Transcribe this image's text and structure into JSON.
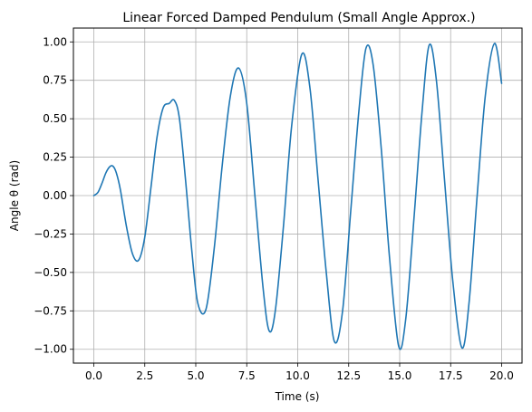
{
  "chart_data": {
    "type": "line",
    "title": "Linear Forced Damped Pendulum (Small Angle Approx.)",
    "xlabel": "Time (s)",
    "ylabel": "Angle θ (rad)",
    "xlim": [
      -1.0,
      21.0
    ],
    "ylim": [
      -1.09,
      1.09
    ],
    "grid": true,
    "x_ticks": [
      0.0,
      2.5,
      5.0,
      7.5,
      10.0,
      12.5,
      15.0,
      17.5,
      20.0
    ],
    "x_tick_labels": [
      "0.0",
      "2.5",
      "5.0",
      "7.5",
      "10.0",
      "12.5",
      "15.0",
      "17.5",
      "20.0"
    ],
    "y_ticks": [
      1.0,
      0.75,
      0.5,
      0.25,
      0.0,
      -0.25,
      -0.5,
      -0.75,
      -1.0
    ],
    "y_tick_labels": [
      "1.00",
      "0.75",
      "0.50",
      "0.25",
      "0.00",
      "−0.25",
      "−0.50",
      "−0.75",
      "−1.00"
    ],
    "series": [
      {
        "color": "#1f77b4",
        "x": [
          0.0,
          0.2,
          0.4,
          0.6,
          0.8,
          0.95,
          1.1,
          1.3,
          1.6,
          1.9,
          2.2,
          2.5,
          2.8,
          3.1,
          3.4,
          3.7,
          3.95,
          4.2,
          4.5,
          4.8,
          5.1,
          5.5,
          5.9,
          6.3,
          6.7,
          7.1,
          7.5,
          7.9,
          8.3,
          8.6,
          8.9,
          9.3,
          9.7,
          10.2,
          10.6,
          11.0,
          11.4,
          11.8,
          12.2,
          12.6,
          13.0,
          13.35,
          13.7,
          14.1,
          14.5,
          14.95,
          15.3,
          15.7,
          16.1,
          16.45,
          16.8,
          17.2,
          17.6,
          18.05,
          18.4,
          18.8,
          19.2,
          19.65,
          20.0
        ],
        "y": [
          0.0,
          0.02,
          0.08,
          0.15,
          0.19,
          0.19,
          0.15,
          0.04,
          -0.2,
          -0.38,
          -0.42,
          -0.27,
          0.05,
          0.38,
          0.57,
          0.6,
          0.62,
          0.5,
          0.1,
          -0.35,
          -0.7,
          -0.74,
          -0.35,
          0.2,
          0.65,
          0.83,
          0.6,
          0.0,
          -0.6,
          -0.88,
          -0.75,
          -0.2,
          0.45,
          0.92,
          0.7,
          0.1,
          -0.5,
          -0.95,
          -0.75,
          -0.1,
          0.55,
          0.96,
          0.85,
          0.3,
          -0.4,
          -0.98,
          -0.8,
          -0.15,
          0.55,
          0.98,
          0.75,
          0.1,
          -0.55,
          -0.99,
          -0.7,
          0.0,
          0.65,
          0.99,
          0.73
        ]
      }
    ]
  }
}
